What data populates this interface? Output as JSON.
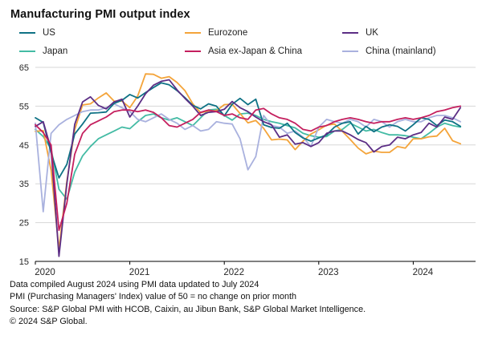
{
  "title": "Manufacturing PMI output index",
  "footer": {
    "line1": "Data compiled August 2024 using PMI data updated to July 2024",
    "line2": "PMI (Purchasing Managers' Index) value of 50 = no change on prior month",
    "line3": "Source: S&P Global PMI with HCOB, Caixin, au Jibun Bank, S&P Global Market Intelligence.",
    "line4": "© 2024 S&P Global."
  },
  "chart_data": {
    "type": "line",
    "title": "Manufacturing PMI output index",
    "x_start": "2020-01",
    "x_end": "2024-07",
    "x_tick_labels": [
      "2020",
      "2021",
      "2022",
      "2023",
      "2024"
    ],
    "y_ticks": [
      15,
      25,
      35,
      45,
      55,
      65
    ],
    "ylim": [
      15,
      65
    ],
    "grid": "horizontal",
    "legend_position": "top",
    "series": [
      {
        "name": "US",
        "color": "#0f7285",
        "values": [
          52.0,
          50.8,
          43.0,
          36.5,
          40.0,
          47.8,
          50.4,
          53.2,
          53.3,
          53.5,
          55.7,
          56.5,
          58.0,
          57.1,
          58.5,
          59.8,
          61.0,
          60.5,
          59.0,
          57.2,
          55.2,
          54.3,
          55.6,
          55.0,
          52.5,
          55.5,
          57.0,
          55.4,
          56.8,
          50.2,
          49.5,
          49.3,
          50.6,
          48.2,
          46.8,
          46.0,
          46.8,
          47.6,
          49.6,
          50.6,
          51.0,
          47.8,
          49.8,
          48.4,
          49.6,
          50.2,
          49.8,
          48.6,
          50.2,
          52.0,
          51.6,
          50.0,
          51.4,
          51.0,
          49.8
        ]
      },
      {
        "name": "Eurozone",
        "color": "#f4a43a",
        "values": [
          48.5,
          48.7,
          38.5,
          18.1,
          35.6,
          48.9,
          55.3,
          55.6,
          57.1,
          58.4,
          56.3,
          56.3,
          54.6,
          57.6,
          63.3,
          63.2,
          62.2,
          62.6,
          61.1,
          59.0,
          55.6,
          53.3,
          53.8,
          53.8,
          55.4,
          55.5,
          53.1,
          50.7,
          51.3,
          49.3,
          46.3,
          46.5,
          46.3,
          43.8,
          46.0,
          47.8,
          48.9,
          50.1,
          50.4,
          48.5,
          46.4,
          44.2,
          42.7,
          43.4,
          43.1,
          43.1,
          44.6,
          44.2,
          46.6,
          46.6,
          47.1,
          47.3,
          49.3,
          46.1,
          45.3
        ]
      },
      {
        "name": "UK",
        "color": "#5c2e85",
        "values": [
          49.8,
          51.0,
          43.9,
          16.3,
          35.0,
          50.3,
          56.1,
          57.4,
          55.2,
          54.3,
          56.1,
          56.8,
          52.2,
          55.0,
          58.2,
          60.4,
          61.4,
          61.8,
          59.2,
          57.0,
          55.0,
          52.6,
          53.4,
          53.6,
          54.2,
          56.2,
          54.6,
          53.6,
          52.2,
          51.0,
          50.2,
          47.0,
          47.6,
          45.2,
          45.6,
          44.6,
          45.6,
          48.0,
          48.6,
          48.6,
          47.6,
          46.4,
          45.6,
          43.2,
          44.6,
          45.0,
          47.0,
          46.6,
          47.6,
          48.2,
          50.6,
          49.6,
          52.2,
          51.6,
          54.6
        ]
      },
      {
        "name": "Japan",
        "color": "#43bba4",
        "values": [
          49.0,
          47.2,
          44.0,
          33.6,
          31.0,
          38.0,
          42.2,
          44.6,
          46.6,
          47.6,
          48.6,
          49.6,
          49.2,
          51.0,
          52.6,
          53.0,
          52.0,
          51.4,
          52.0,
          51.0,
          50.0,
          52.0,
          54.0,
          54.2,
          52.6,
          51.4,
          53.0,
          53.2,
          52.6,
          51.6,
          51.0,
          50.6,
          50.0,
          49.4,
          48.0,
          47.4,
          47.0,
          47.2,
          48.6,
          49.0,
          50.6,
          49.6,
          48.6,
          49.0,
          48.2,
          47.6,
          47.6,
          47.4,
          47.0,
          46.6,
          48.0,
          49.6,
          50.6,
          50.0,
          49.6
        ]
      },
      {
        "name": "Asia ex-Japan & China",
        "color": "#c41f5e",
        "values": [
          50.2,
          48.2,
          45.0,
          23.0,
          30.0,
          42.6,
          48.0,
          50.2,
          51.2,
          52.2,
          53.6,
          54.0,
          54.0,
          53.6,
          54.0,
          53.4,
          52.0,
          50.0,
          49.6,
          50.6,
          51.6,
          53.4,
          54.0,
          53.6,
          52.6,
          53.0,
          52.0,
          51.6,
          54.0,
          54.4,
          53.0,
          52.0,
          51.6,
          50.6,
          49.0,
          48.6,
          49.6,
          50.0,
          51.0,
          51.6,
          52.0,
          51.6,
          51.0,
          50.6,
          51.0,
          51.0,
          51.6,
          52.0,
          51.6,
          52.0,
          52.6,
          53.6,
          54.0,
          54.6,
          55.0
        ]
      },
      {
        "name": "China (mainland)",
        "color": "#a9b1de",
        "values": [
          50.6,
          27.8,
          48.0,
          50.2,
          51.6,
          52.6,
          53.6,
          54.0,
          54.0,
          54.6,
          55.6,
          54.6,
          53.6,
          51.6,
          51.0,
          52.0,
          53.0,
          51.6,
          50.6,
          49.0,
          50.0,
          48.6,
          49.0,
          51.0,
          50.6,
          50.4,
          46.6,
          38.6,
          42.0,
          52.6,
          50.0,
          49.6,
          48.0,
          48.6,
          47.0,
          44.6,
          49.6,
          51.6,
          51.0,
          50.6,
          51.6,
          51.0,
          49.6,
          51.6,
          51.0,
          49.6,
          51.0,
          51.6,
          51.0,
          51.0,
          52.0,
          52.6,
          52.6,
          52.0,
          51.0
        ]
      }
    ]
  }
}
